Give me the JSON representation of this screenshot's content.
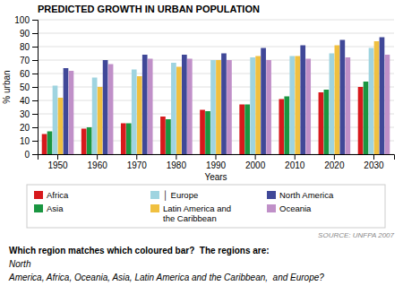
{
  "chart_data": {
    "type": "bar",
    "title": "PREDICTED GROWTH IN URBAN POPULATION",
    "xlabel": "Years",
    "ylabel": "% urban",
    "categories": [
      "1950",
      "1960",
      "1970",
      "1980",
      "1990",
      "2000",
      "2010",
      "2020",
      "2030"
    ],
    "series": [
      {
        "name": "Africa",
        "color": "#d7191c",
        "values": [
          15,
          19,
          23,
          28,
          33,
          37,
          41,
          46,
          50
        ]
      },
      {
        "name": "Asia",
        "color": "#1a9641",
        "values": [
          17,
          20,
          23,
          26,
          32,
          37,
          43,
          48,
          54
        ]
      },
      {
        "name": "│ Europe",
        "color": "#9fd4e0",
        "values": [
          51,
          57,
          63,
          68,
          70,
          72,
          73,
          75,
          79
        ]
      },
      {
        "name": "Latin America and\nthe Caribbean",
        "color": "#f0c040",
        "values": [
          42,
          50,
          58,
          65,
          70,
          73,
          73,
          81,
          84
        ]
      },
      {
        "name": "North America",
        "color": "#404898",
        "values": [
          64,
          70,
          74,
          74,
          75,
          79,
          81,
          85,
          87
        ]
      },
      {
        "name": "Oceania",
        "color": "#c090c8",
        "values": [
          62,
          67,
          71,
          71,
          70,
          70,
          71,
          72,
          74
        ]
      }
    ],
    "ylim": [
      0,
      100
    ],
    "yticks": [
      0,
      10,
      20,
      30,
      40,
      50,
      60,
      70,
      80,
      90,
      100
    ],
    "grid": true,
    "legend": "bottom",
    "annotations": [
      "SOURCE: UNFPA 2007",
      "Which region matches which coloured bar?  The regions are: ",
      "North",
      "America, Africa, Oceania, Asia, Latin America and the Caribbean,  and Europe?"
    ]
  }
}
